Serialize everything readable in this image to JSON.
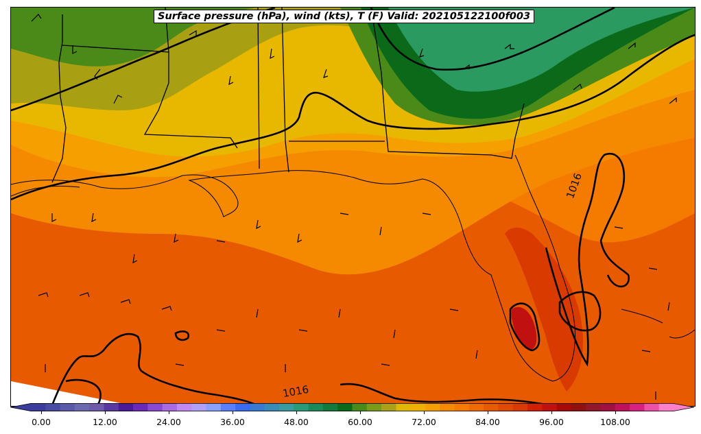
{
  "title": "Surface pressure (hPa), wind (kts), T (F) Valid: 202105122100f003",
  "contour_labels": [
    {
      "id": "east",
      "text": "1016"
    },
    {
      "id": "south",
      "text": "1016"
    }
  ],
  "colorbar": {
    "tick_labels": [
      "0.00",
      "12.00",
      "24.00",
      "36.00",
      "48.00",
      "60.00",
      "72.00",
      "84.00",
      "96.00",
      "108.00"
    ],
    "colors": [
      "#3b3b9c",
      "#4a4aa3",
      "#5a5aa9",
      "#6a6aac",
      "#6e5aa8",
      "#5a3aa0",
      "#4a1a98",
      "#6a2ab8",
      "#8a4ad0",
      "#aa6ae0",
      "#c08af0",
      "#b0a0f8",
      "#8aa0ff",
      "#5a80ff",
      "#3a6af0",
      "#3a7ad0",
      "#3a8ab8",
      "#3a9aa0",
      "#2a9a7a",
      "#1a8a5a",
      "#127a3a",
      "#0a6a1a",
      "#4a8a1a",
      "#7a9a1a",
      "#aaa01a",
      "#e0b800",
      "#f0b000",
      "#f5a000",
      "#f58a00",
      "#f57a00",
      "#f06a00",
      "#e85a00",
      "#e04a00",
      "#d83a00",
      "#d02000",
      "#c01010",
      "#a80808",
      "#901010",
      "#901828",
      "#a01040",
      "#c0105a",
      "#d82080",
      "#ee50a8",
      "#ff80c8"
    ]
  }
}
